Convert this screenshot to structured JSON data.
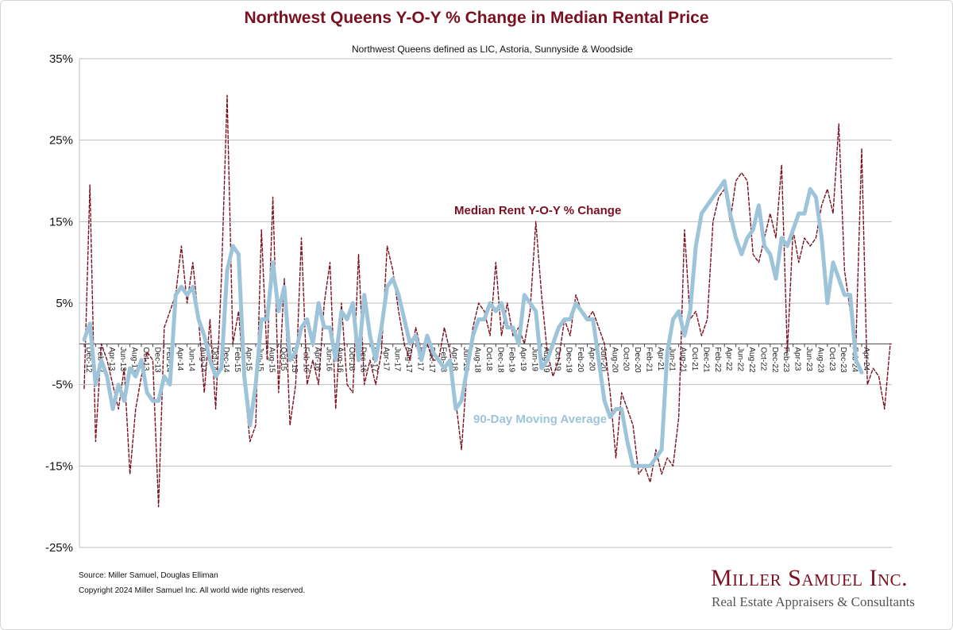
{
  "chart_data": {
    "type": "line",
    "title": "Northwest Queens Y-O-Y % Change in Median Rental Price",
    "subtitle": "Northwest Queens defined as LIC, Astoria, Sunnyside & Woodside",
    "ylim": [
      -25,
      35
    ],
    "yticks": [
      35,
      25,
      15,
      5,
      -5,
      -15,
      -25
    ],
    "ytick_labels": [
      "35%",
      "25%",
      "15%",
      "5%",
      "-5%",
      "-15%",
      "-25%"
    ],
    "x_start": "Dec-12",
    "x_end": "Apr-24",
    "xtick_labels": [
      "Dec-12",
      "Feb-13",
      "Apr-13",
      "Jun-13",
      "Aug-13",
      "Oct-13",
      "Dec-13",
      "Feb-14",
      "Apr-14",
      "Jun-14",
      "Aug-14",
      "Oct-14",
      "Dec-14",
      "Feb-15",
      "Apr-15",
      "Jun-15",
      "Aug-15",
      "Oct-15",
      "Dec-15",
      "Feb-16",
      "Apr-16",
      "Jun-16",
      "Aug-16",
      "Oct-16",
      "Dec-16",
      "Feb-17",
      "Apr-17",
      "Jun-17",
      "Aug-17",
      "Oct-17",
      "Dec-17",
      "Feb-18",
      "Apr-18",
      "Jun-18",
      "Aug-18",
      "Oct-18",
      "Dec-18",
      "Feb-19",
      "Apr-19",
      "Jun-19",
      "Aug-19",
      "Oct-19",
      "Dec-19",
      "Feb-20",
      "Apr-20",
      "Jun-20",
      "Aug-20",
      "Oct-20",
      "Dec-20",
      "Feb-21",
      "Apr-21",
      "Jun-21",
      "Aug-21",
      "Oct-21",
      "Dec-21",
      "Feb-22",
      "Apr-22",
      "Jun-22",
      "Aug-22",
      "Oct-22",
      "Dec-22",
      "Feb-23",
      "Apr-23",
      "Jun-23",
      "Aug-23",
      "Oct-23",
      "Dec-23",
      "Feb-24",
      "Apr-24"
    ],
    "series": [
      {
        "name": "Median Rent Y-O-Y % Change",
        "color": "#7a1020",
        "style": "dashed",
        "values": [
          -5.5,
          19.5,
          -12,
          0,
          -2,
          -5,
          -8,
          -3,
          -16,
          -8,
          -4,
          -1,
          -2,
          -20,
          2,
          4,
          6,
          12,
          5,
          10,
          3,
          -6,
          3,
          -8,
          8,
          30.5,
          0,
          4,
          -5,
          -12,
          -10,
          14,
          -2,
          18,
          -6,
          8,
          -10,
          -5,
          13,
          -5,
          -2,
          -5,
          5,
          10,
          -8,
          5,
          -5,
          -6,
          11,
          -5,
          -2,
          -5,
          -1,
          12,
          9,
          4,
          0,
          -2,
          2,
          -1,
          0,
          -2,
          -2,
          2,
          -1,
          -7,
          -13,
          -3,
          2,
          5,
          4,
          1,
          10,
          1,
          5,
          1,
          2,
          0,
          4,
          15,
          6,
          -1,
          -4,
          -2,
          3,
          1,
          6,
          4,
          3,
          4,
          2,
          0,
          -6,
          -14,
          -6,
          -8,
          -10,
          -16,
          -15,
          -17,
          -13,
          -16,
          -14,
          -15,
          -9,
          14,
          3,
          4,
          1,
          3,
          15,
          18,
          19,
          15,
          20,
          21,
          20,
          11,
          10,
          13,
          16,
          13,
          22,
          -1,
          14,
          10,
          13,
          12,
          13,
          17,
          19,
          16,
          27,
          9,
          4,
          0,
          24,
          -5,
          -3,
          -4,
          -8,
          0
        ]
      },
      {
        "name": "90-Day Moving Average",
        "color": "#9ec4da",
        "style": "solid",
        "values": [
          0.5,
          2.5,
          -5,
          -2,
          -4,
          -8,
          -5,
          -7,
          -3,
          -4,
          -2,
          -6,
          -7,
          -7,
          -4,
          -5,
          6,
          7,
          6,
          7,
          3,
          1,
          -2,
          -4,
          -3,
          9,
          12,
          11,
          -4,
          -10,
          -5,
          3,
          3,
          10,
          4,
          7,
          -2,
          -1,
          2,
          3,
          0,
          5,
          2,
          2,
          -2,
          4,
          3,
          5,
          -2,
          6,
          1,
          -2,
          2,
          7,
          8,
          6,
          3,
          0,
          1,
          -2,
          1,
          -1,
          -2,
          -3,
          -2,
          -8,
          -7,
          -3,
          1,
          3,
          3,
          5,
          4,
          5,
          2,
          2,
          0,
          6,
          5,
          4,
          -3,
          -2,
          0,
          2,
          3,
          3,
          5,
          4,
          3,
          3,
          -2,
          -7,
          -9,
          -8,
          -8,
          -12,
          -15,
          -15,
          -15,
          -15,
          -14,
          -13,
          -1,
          3,
          4,
          1,
          4,
          12,
          16,
          17,
          18,
          19,
          20,
          16,
          13,
          11,
          13,
          14,
          17,
          12,
          11,
          8,
          13,
          12,
          14,
          16,
          16,
          19,
          18,
          13,
          5,
          10,
          8,
          6,
          6,
          -2,
          -3.5
        ]
      }
    ],
    "annotations": [
      {
        "text": "Median Rent Y-O-Y % Change",
        "series": 0
      },
      {
        "text": "90-Day Moving Average",
        "series": 1
      }
    ],
    "grid": true
  },
  "footer": {
    "source": "Source: Miller Samuel, Douglas Elliman",
    "copyright": "Copyright 2024 Miller Samuel Inc.  All world wide rights reserved."
  },
  "brand": {
    "name": "Miller Samuel Inc.",
    "tagline": "Real Estate Appraisers & Consultants"
  }
}
